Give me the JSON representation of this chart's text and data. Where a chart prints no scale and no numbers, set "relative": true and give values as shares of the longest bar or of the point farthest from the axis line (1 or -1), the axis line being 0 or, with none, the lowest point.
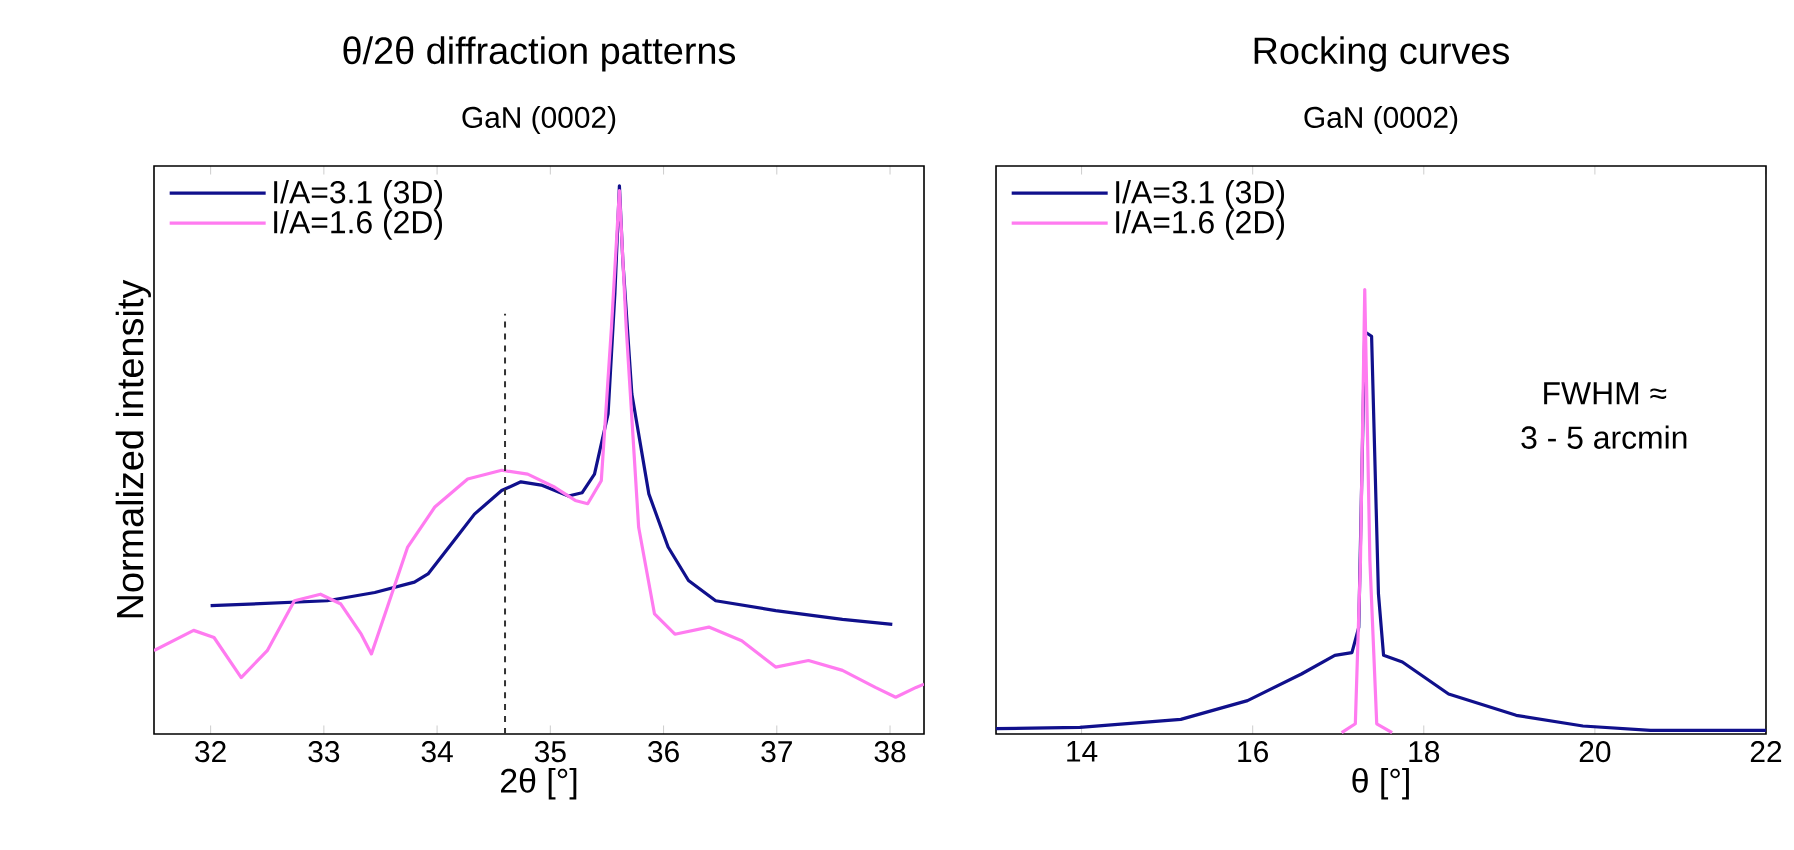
{
  "chart_data": [
    {
      "type": "line",
      "title": "θ/2θ diffraction patterns",
      "subtitle": "GaN (0002)",
      "xlabel": "2θ [°]",
      "ylabel": "Normalized intensity",
      "relative": true,
      "tick_labels": "x",
      "legend": "top left",
      "xlim": [
        31.5,
        38.3
      ],
      "xticks": [
        32,
        33,
        34,
        35,
        36,
        37,
        38
      ],
      "ref_lines": [
        {
          "axis": "x",
          "value": 34.6,
          "color": "#333333",
          "line_style": "dashed"
        }
      ],
      "series": [
        {
          "name": "I/A=3.1 (3D)",
          "color": "#10108c",
          "x": [
            32.0,
            33.03,
            33.45,
            33.8,
            33.92,
            34.15,
            34.33,
            34.57,
            34.74,
            34.92,
            35.16,
            35.28,
            35.39,
            35.51,
            35.57,
            35.61,
            35.64,
            35.72,
            35.87,
            36.04,
            36.22,
            36.46,
            36.99,
            37.58,
            38.02
          ],
          "values": [
            0.234,
            0.243,
            0.258,
            0.277,
            0.292,
            0.353,
            0.401,
            0.444,
            0.46,
            0.454,
            0.434,
            0.44,
            0.474,
            0.584,
            0.803,
            1.0,
            0.864,
            0.62,
            0.438,
            0.341,
            0.28,
            0.243,
            0.225,
            0.209,
            0.2
          ]
        },
        {
          "name": "I/A=1.6 (2D)",
          "color": "#ff7bf0",
          "x": [
            31.5,
            31.85,
            32.03,
            32.27,
            32.5,
            32.74,
            32.97,
            33.15,
            33.33,
            33.42,
            33.54,
            33.74,
            33.98,
            34.27,
            34.57,
            34.8,
            35.04,
            35.22,
            35.33,
            35.45,
            35.54,
            35.61,
            35.67,
            35.78,
            35.92,
            36.1,
            36.4,
            36.69,
            36.99,
            37.28,
            37.58,
            37.87,
            38.05,
            38.23,
            38.3
          ],
          "values": [
            0.152,
            0.189,
            0.176,
            0.103,
            0.152,
            0.243,
            0.255,
            0.237,
            0.182,
            0.146,
            0.219,
            0.341,
            0.414,
            0.465,
            0.481,
            0.474,
            0.45,
            0.426,
            0.42,
            0.462,
            0.742,
            0.991,
            0.742,
            0.377,
            0.219,
            0.182,
            0.195,
            0.17,
            0.122,
            0.134,
            0.116,
            0.085,
            0.067,
            0.085,
            0.091
          ]
        }
      ]
    },
    {
      "type": "line",
      "title": "Rocking curves",
      "subtitle": "GaN (0002)",
      "xlabel": "θ [°]",
      "relative": true,
      "tick_labels": "x",
      "legend": "top left",
      "xlim": [
        13,
        22
      ],
      "xticks": [
        14,
        16,
        18,
        20,
        22
      ],
      "annotations": [
        "FWHM ≈",
        "3 - 5 arcmin"
      ],
      "series": [
        {
          "name": "I/A=3.1 (3D)",
          "color": "#10108c",
          "x": [
            13.0,
            13.98,
            15.16,
            15.94,
            16.57,
            16.96,
            17.16,
            17.24,
            17.31,
            17.39,
            17.47,
            17.53,
            17.75,
            18.29,
            19.08,
            19.86,
            20.65,
            22.0
          ],
          "values": [
            0.012,
            0.015,
            0.033,
            0.075,
            0.135,
            0.177,
            0.183,
            0.24,
            0.905,
            0.895,
            0.316,
            0.177,
            0.162,
            0.09,
            0.042,
            0.018,
            0.008,
            0.008
          ]
        },
        {
          "name": "I/A=1.6 (2D)",
          "color": "#ff7bf0",
          "x": [
            17.04,
            17.2,
            17.26,
            17.31,
            17.37,
            17.45,
            17.63
          ],
          "values": [
            0.003,
            0.023,
            0.391,
            1.0,
            0.391,
            0.023,
            0.003
          ]
        }
      ]
    }
  ]
}
